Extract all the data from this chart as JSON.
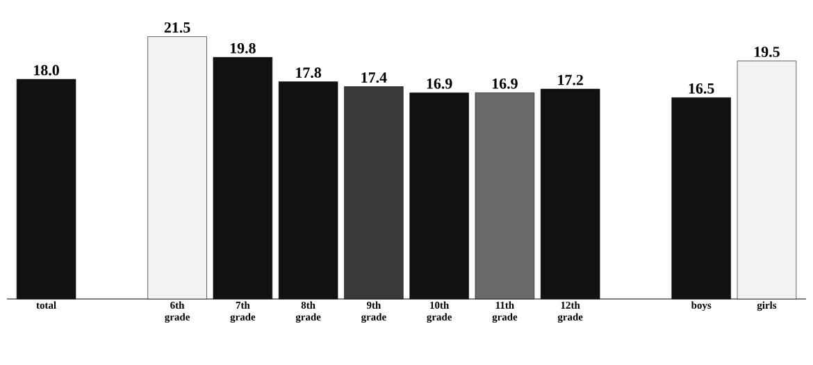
{
  "chart_data": {
    "type": "bar",
    "categories": [
      "total",
      null,
      "6th grade",
      "7th grade",
      "8th grade",
      "9th grade",
      "10th grade",
      "11th grade",
      "12th grade",
      null,
      "boys",
      "girls"
    ],
    "values": [
      18.0,
      null,
      21.5,
      19.8,
      17.8,
      17.4,
      16.9,
      16.9,
      17.2,
      null,
      16.5,
      19.5
    ],
    "colors": [
      "#111111",
      null,
      "#f2f2f2",
      "#111111",
      "#111111",
      "#3a3a3a",
      "#111111",
      "#6a6a6a",
      "#111111",
      null,
      "#111111",
      "#f2f2f2"
    ],
    "value_labels": [
      "18.0",
      null,
      "21.5",
      "19.8",
      "17.8",
      "17.4",
      "16.9",
      "16.9",
      "17.2",
      null,
      "16.5",
      "19.5"
    ]
  }
}
